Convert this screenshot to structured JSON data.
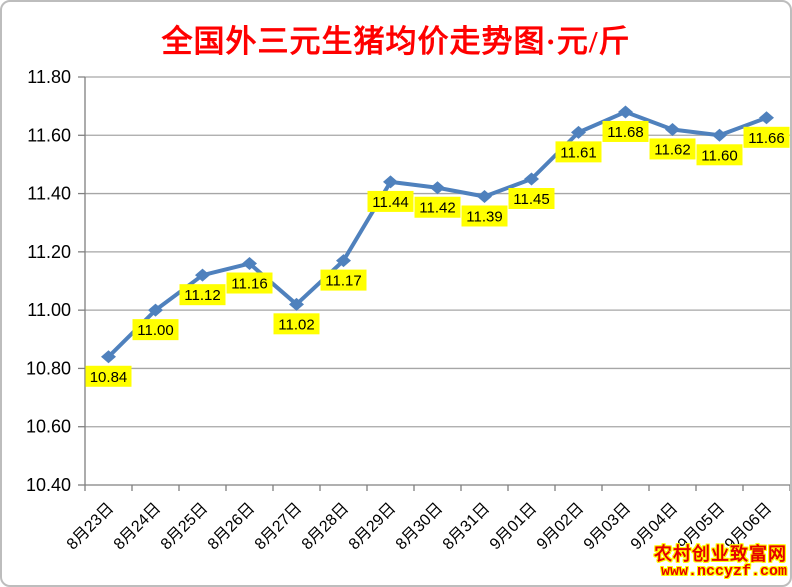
{
  "title": "全国外三元生猪均价走势图·元/斤",
  "watermark": {
    "site_name": "农村创业致富网",
    "site_url": "www.nccyzf.com"
  },
  "chart_data": {
    "type": "line",
    "title": "全国外三元生猪均价走势图·元/斤",
    "categories": [
      "8月23日",
      "8月24日",
      "8月25日",
      "8月26日",
      "8月27日",
      "8月28日",
      "8月29日",
      "8月30日",
      "8月31日",
      "9月01日",
      "9月02日",
      "9月03日",
      "9月04日",
      "9月05日",
      "9月06日"
    ],
    "values": [
      10.84,
      11.0,
      11.12,
      11.16,
      11.02,
      11.17,
      11.44,
      11.42,
      11.39,
      11.45,
      11.61,
      11.68,
      11.62,
      11.6,
      11.66
    ],
    "data_labels": [
      "10.84",
      "11.00",
      "11.12",
      "11.16",
      "11.02",
      "11.17",
      "11.44",
      "11.42",
      "11.39",
      "11.45",
      "11.61",
      "11.68",
      "11.62",
      "11.60",
      "11.66"
    ],
    "xlabel": "",
    "ylabel": "",
    "ylim": [
      10.4,
      11.8
    ],
    "ytick_step": 0.2,
    "ytick_labels": [
      "10.40",
      "10.60",
      "10.80",
      "11.00",
      "11.20",
      "11.40",
      "11.60",
      "11.80"
    ],
    "grid": true,
    "legend_position": "none",
    "marker": "diamond",
    "colors": {
      "series_line": "#4f81bd",
      "marker_fill": "#4f81bd",
      "gridline": "#a6a6a6",
      "axis_line": "#808080",
      "axis_text": "#000000",
      "data_label_bg": "#ffff00",
      "data_label_text": "#000000",
      "title_text": "#ff0000"
    }
  }
}
